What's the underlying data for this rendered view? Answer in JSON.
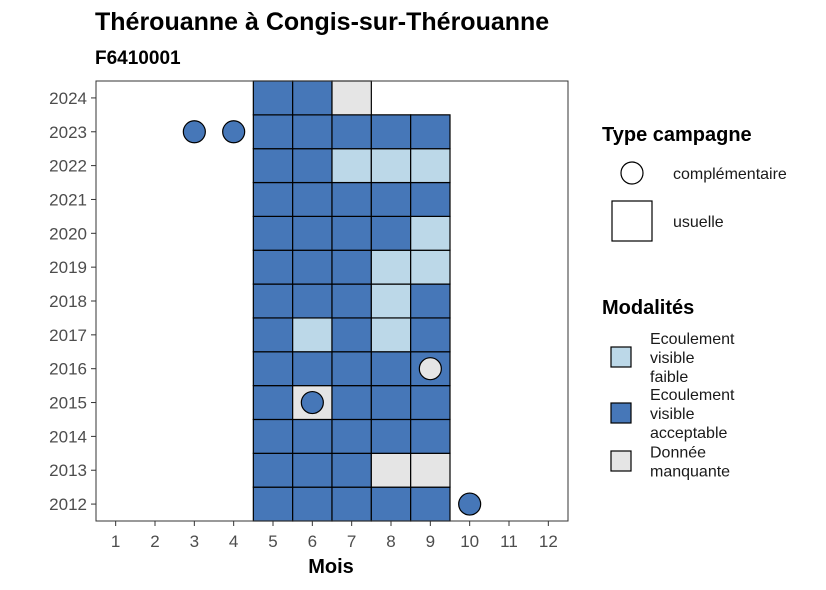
{
  "chart_data": {
    "type": "heatmap",
    "title": "Thérouanne à Congis-sur-Thérouanne",
    "subtitle": "F6410001",
    "xlabel": "Mois",
    "ylabel": "",
    "x_ticks": [
      "1",
      "2",
      "3",
      "4",
      "5",
      "6",
      "7",
      "8",
      "9",
      "10",
      "11",
      "12"
    ],
    "y_ticks": [
      "2012",
      "2013",
      "2014",
      "2015",
      "2016",
      "2017",
      "2018",
      "2019",
      "2020",
      "2021",
      "2022",
      "2023",
      "2024"
    ],
    "xlim": [
      0.5,
      12.5
    ],
    "ylim": [
      2011.5,
      2024.5
    ],
    "grid": false,
    "legend_placement": "right",
    "colors": {
      "faible": "#bcd8e8",
      "acceptable": "#4677b8",
      "manquante": "#e5e5e5",
      "border": "#000000"
    },
    "legends": {
      "type": {
        "title": "Type campagne",
        "entries": [
          {
            "key": "complementaire",
            "label": "complémentaire",
            "shape": "circle"
          },
          {
            "key": "usuelle",
            "label": "usuelle",
            "shape": "square"
          }
        ]
      },
      "modalite": {
        "title": "Modalités",
        "entries": [
          {
            "key": "faible",
            "lines": [
              "Ecoulement",
              "visible",
              "faible"
            ]
          },
          {
            "key": "acceptable",
            "lines": [
              "Ecoulement",
              "visible",
              "acceptable"
            ]
          },
          {
            "key": "manquante",
            "lines": [
              "Donnée",
              "manquante"
            ]
          }
        ]
      }
    },
    "tiles": [
      {
        "month": 5,
        "year": 2012,
        "modalite": "acceptable"
      },
      {
        "month": 6,
        "year": 2012,
        "modalite": "acceptable"
      },
      {
        "month": 7,
        "year": 2012,
        "modalite": "acceptable"
      },
      {
        "month": 8,
        "year": 2012,
        "modalite": "acceptable"
      },
      {
        "month": 9,
        "year": 2012,
        "modalite": "acceptable"
      },
      {
        "month": 5,
        "year": 2013,
        "modalite": "acceptable"
      },
      {
        "month": 6,
        "year": 2013,
        "modalite": "acceptable"
      },
      {
        "month": 7,
        "year": 2013,
        "modalite": "acceptable"
      },
      {
        "month": 8,
        "year": 2013,
        "modalite": "manquante"
      },
      {
        "month": 9,
        "year": 2013,
        "modalite": "manquante"
      },
      {
        "month": 5,
        "year": 2014,
        "modalite": "acceptable"
      },
      {
        "month": 6,
        "year": 2014,
        "modalite": "acceptable"
      },
      {
        "month": 7,
        "year": 2014,
        "modalite": "acceptable"
      },
      {
        "month": 8,
        "year": 2014,
        "modalite": "acceptable"
      },
      {
        "month": 9,
        "year": 2014,
        "modalite": "acceptable"
      },
      {
        "month": 5,
        "year": 2015,
        "modalite": "acceptable"
      },
      {
        "month": 6,
        "year": 2015,
        "modalite": "manquante"
      },
      {
        "month": 7,
        "year": 2015,
        "modalite": "acceptable"
      },
      {
        "month": 8,
        "year": 2015,
        "modalite": "acceptable"
      },
      {
        "month": 9,
        "year": 2015,
        "modalite": "acceptable"
      },
      {
        "month": 5,
        "year": 2016,
        "modalite": "acceptable"
      },
      {
        "month": 6,
        "year": 2016,
        "modalite": "acceptable"
      },
      {
        "month": 7,
        "year": 2016,
        "modalite": "acceptable"
      },
      {
        "month": 8,
        "year": 2016,
        "modalite": "acceptable"
      },
      {
        "month": 9,
        "year": 2016,
        "modalite": "acceptable"
      },
      {
        "month": 5,
        "year": 2017,
        "modalite": "acceptable"
      },
      {
        "month": 6,
        "year": 2017,
        "modalite": "faible"
      },
      {
        "month": 7,
        "year": 2017,
        "modalite": "acceptable"
      },
      {
        "month": 8,
        "year": 2017,
        "modalite": "faible"
      },
      {
        "month": 9,
        "year": 2017,
        "modalite": "acceptable"
      },
      {
        "month": 5,
        "year": 2018,
        "modalite": "acceptable"
      },
      {
        "month": 6,
        "year": 2018,
        "modalite": "acceptable"
      },
      {
        "month": 7,
        "year": 2018,
        "modalite": "acceptable"
      },
      {
        "month": 8,
        "year": 2018,
        "modalite": "faible"
      },
      {
        "month": 9,
        "year": 2018,
        "modalite": "acceptable"
      },
      {
        "month": 5,
        "year": 2019,
        "modalite": "acceptable"
      },
      {
        "month": 6,
        "year": 2019,
        "modalite": "acceptable"
      },
      {
        "month": 7,
        "year": 2019,
        "modalite": "acceptable"
      },
      {
        "month": 8,
        "year": 2019,
        "modalite": "faible"
      },
      {
        "month": 9,
        "year": 2019,
        "modalite": "faible"
      },
      {
        "month": 5,
        "year": 2020,
        "modalite": "acceptable"
      },
      {
        "month": 6,
        "year": 2020,
        "modalite": "acceptable"
      },
      {
        "month": 7,
        "year": 2020,
        "modalite": "acceptable"
      },
      {
        "month": 8,
        "year": 2020,
        "modalite": "acceptable"
      },
      {
        "month": 9,
        "year": 2020,
        "modalite": "faible"
      },
      {
        "month": 5,
        "year": 2021,
        "modalite": "acceptable"
      },
      {
        "month": 6,
        "year": 2021,
        "modalite": "acceptable"
      },
      {
        "month": 7,
        "year": 2021,
        "modalite": "acceptable"
      },
      {
        "month": 8,
        "year": 2021,
        "modalite": "acceptable"
      },
      {
        "month": 9,
        "year": 2021,
        "modalite": "acceptable"
      },
      {
        "month": 5,
        "year": 2022,
        "modalite": "acceptable"
      },
      {
        "month": 6,
        "year": 2022,
        "modalite": "acceptable"
      },
      {
        "month": 7,
        "year": 2022,
        "modalite": "faible"
      },
      {
        "month": 8,
        "year": 2022,
        "modalite": "faible"
      },
      {
        "month": 9,
        "year": 2022,
        "modalite": "faible"
      },
      {
        "month": 5,
        "year": 2023,
        "modalite": "acceptable"
      },
      {
        "month": 6,
        "year": 2023,
        "modalite": "acceptable"
      },
      {
        "month": 7,
        "year": 2023,
        "modalite": "acceptable"
      },
      {
        "month": 8,
        "year": 2023,
        "modalite": "acceptable"
      },
      {
        "month": 9,
        "year": 2023,
        "modalite": "acceptable"
      },
      {
        "month": 5,
        "year": 2024,
        "modalite": "acceptable"
      },
      {
        "month": 6,
        "year": 2024,
        "modalite": "acceptable"
      },
      {
        "month": 7,
        "year": 2024,
        "modalite": "manquante"
      }
    ],
    "points": [
      {
        "month": 3,
        "year": 2023,
        "modalite": "acceptable"
      },
      {
        "month": 4,
        "year": 2023,
        "modalite": "acceptable"
      },
      {
        "month": 9,
        "year": 2016,
        "modalite": "manquante"
      },
      {
        "month": 6,
        "year": 2015,
        "modalite": "acceptable"
      },
      {
        "month": 10,
        "year": 2012,
        "modalite": "acceptable"
      }
    ]
  }
}
